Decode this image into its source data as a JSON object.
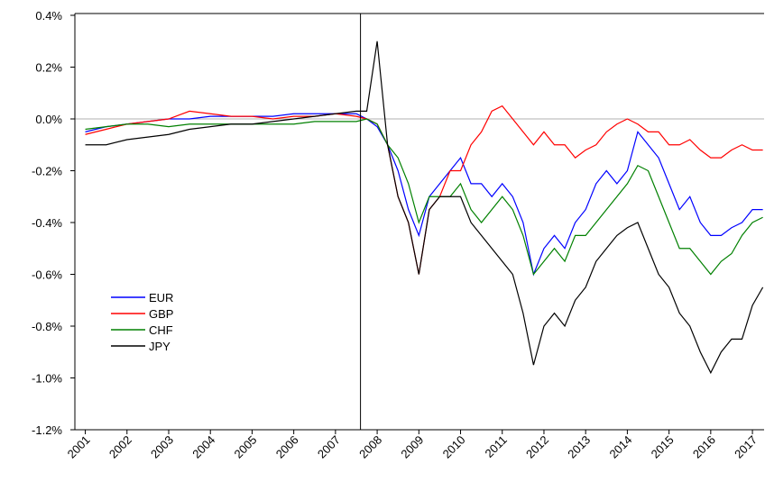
{
  "chart_data": {
    "type": "line",
    "x": [
      2001,
      2001.5,
      2002,
      2002.5,
      2003,
      2003.5,
      2004,
      2004.5,
      2005,
      2005.5,
      2006,
      2006.5,
      2007,
      2007.5,
      2007.75,
      2008,
      2008.25,
      2008.5,
      2008.75,
      2009,
      2009.25,
      2009.5,
      2009.75,
      2010,
      2010.25,
      2010.5,
      2010.75,
      2011,
      2011.25,
      2011.5,
      2011.75,
      2012,
      2012.25,
      2012.5,
      2012.75,
      2013,
      2013.25,
      2013.5,
      2013.75,
      2014,
      2014.25,
      2014.5,
      2014.75,
      2015,
      2015.25,
      2015.5,
      2015.75,
      2016,
      2016.25,
      2016.5,
      2016.75,
      2017,
      2017.25
    ],
    "series": [
      {
        "name": "EUR",
        "color": "#0000ff",
        "values": [
          -0.05,
          -0.03,
          -0.02,
          -0.01,
          0,
          0,
          0.01,
          0.01,
          0.01,
          0.01,
          0.02,
          0.02,
          0.02,
          0.02,
          0.0,
          -0.03,
          -0.1,
          -0.2,
          -0.35,
          -0.45,
          -0.3,
          -0.25,
          -0.2,
          -0.15,
          -0.25,
          -0.25,
          -0.3,
          -0.25,
          -0.3,
          -0.4,
          -0.6,
          -0.5,
          -0.45,
          -0.5,
          -0.4,
          -0.35,
          -0.25,
          -0.2,
          -0.25,
          -0.2,
          -0.05,
          -0.1,
          -0.15,
          -0.25,
          -0.35,
          -0.3,
          -0.4,
          -0.45,
          -0.45,
          -0.42,
          -0.4,
          -0.35,
          -0.35
        ]
      },
      {
        "name": "GBP",
        "color": "#ff0000",
        "values": [
          -0.06,
          -0.04,
          -0.02,
          -0.01,
          0.0,
          0.03,
          0.02,
          0.01,
          0.01,
          0.0,
          0.01,
          0.01,
          0.02,
          0.01,
          0.0,
          -0.02,
          -0.1,
          -0.3,
          -0.4,
          -0.6,
          -0.35,
          -0.3,
          -0.2,
          -0.2,
          -0.1,
          -0.05,
          0.03,
          0.05,
          0.0,
          -0.05,
          -0.1,
          -0.05,
          -0.1,
          -0.1,
          -0.15,
          -0.12,
          -0.1,
          -0.05,
          -0.02,
          0.0,
          -0.02,
          -0.05,
          -0.05,
          -0.1,
          -0.1,
          -0.08,
          -0.12,
          -0.15,
          -0.15,
          -0.12,
          -0.1,
          -0.12,
          -0.12
        ]
      },
      {
        "name": "CHF",
        "color": "#008000",
        "values": [
          -0.04,
          -0.03,
          -0.02,
          -0.02,
          -0.03,
          -0.02,
          -0.02,
          -0.02,
          -0.02,
          -0.02,
          -0.02,
          -0.01,
          -0.01,
          -0.01,
          0.0,
          -0.02,
          -0.1,
          -0.15,
          -0.25,
          -0.4,
          -0.3,
          -0.3,
          -0.3,
          -0.25,
          -0.35,
          -0.4,
          -0.35,
          -0.3,
          -0.35,
          -0.45,
          -0.6,
          -0.55,
          -0.5,
          -0.55,
          -0.45,
          -0.45,
          -0.4,
          -0.35,
          -0.3,
          -0.25,
          -0.18,
          -0.2,
          -0.3,
          -0.4,
          -0.5,
          -0.5,
          -0.55,
          -0.6,
          -0.55,
          -0.52,
          -0.45,
          -0.4,
          -0.38
        ]
      },
      {
        "name": "JPY",
        "color": "#000000",
        "values": [
          -0.1,
          -0.1,
          -0.08,
          -0.07,
          -0.06,
          -0.04,
          -0.03,
          -0.02,
          -0.02,
          -0.01,
          0.0,
          0.01,
          0.02,
          0.03,
          0.03,
          0.3,
          -0.1,
          -0.3,
          -0.4,
          -0.6,
          -0.35,
          -0.3,
          -0.3,
          -0.3,
          -0.4,
          -0.45,
          -0.5,
          -0.55,
          -0.6,
          -0.75,
          -0.95,
          -0.8,
          -0.75,
          -0.8,
          -0.7,
          -0.65,
          -0.55,
          -0.5,
          -0.45,
          -0.42,
          -0.4,
          -0.5,
          -0.6,
          -0.65,
          -0.75,
          -0.8,
          -0.9,
          -0.98,
          -0.9,
          -0.85,
          -0.85,
          -0.72,
          -0.65
        ]
      }
    ],
    "xlim": [
      2000.75,
      2017.28
    ],
    "xticks": [
      2001,
      2002,
      2003,
      2004,
      2005,
      2006,
      2007,
      2008,
      2009,
      2010,
      2011,
      2012,
      2013,
      2014,
      2015,
      2016,
      2017
    ],
    "ylim": [
      -1.2,
      0.4
    ],
    "yticks": [
      {
        "value": 0.4,
        "label": "0.4%"
      },
      {
        "value": 0.2,
        "label": "0.2%"
      },
      {
        "value": 0,
        "label": "0.0%"
      },
      {
        "value": -0.2,
        "label": "-0.2%"
      },
      {
        "value": -0.4,
        "label": "-0.4%"
      },
      {
        "value": -0.6,
        "label": "-0.6%"
      },
      {
        "value": -0.8,
        "label": "-0.8%"
      },
      {
        "value": -1.0,
        "label": "-1.0%"
      },
      {
        "value": -1.2,
        "label": "-1.2%"
      }
    ],
    "hline": 0,
    "vline": 2007.6,
    "legend": "lower left"
  }
}
